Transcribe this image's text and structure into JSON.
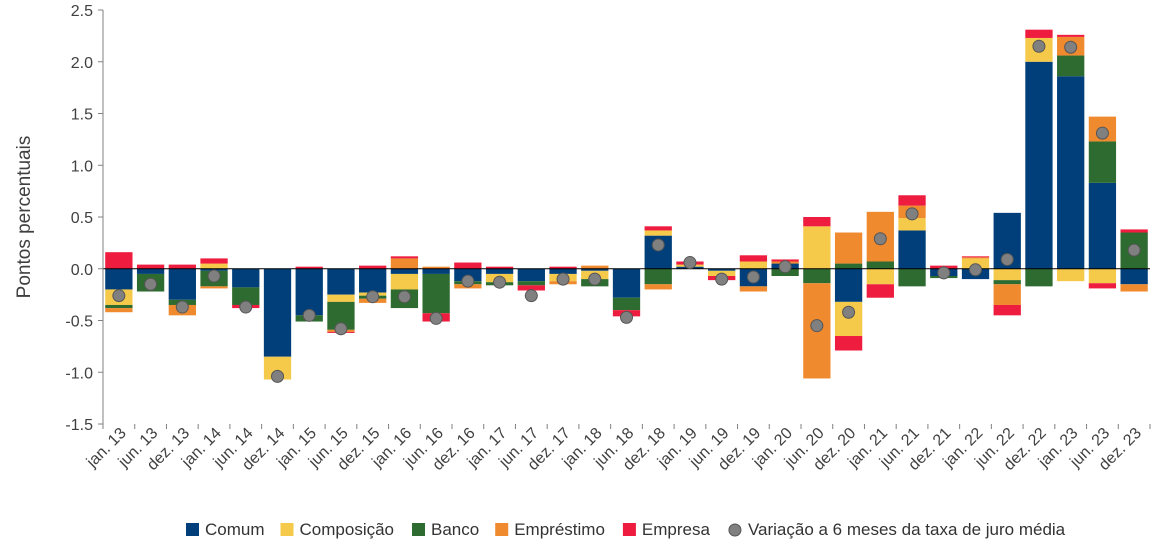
{
  "chart_data": {
    "type": "bar",
    "stacked": true,
    "title": "",
    "xlabel": "",
    "ylabel": "Pontos percentuais",
    "ylim": [
      -1.5,
      2.5
    ],
    "yticks": [
      -1.5,
      -1.0,
      -0.5,
      0.0,
      0.5,
      1.0,
      1.5,
      2.0,
      2.5
    ],
    "ytick_labels": [
      "-1.5",
      "-1.0",
      "-0.5",
      "0.0",
      "0.5",
      "1.0",
      "1.5",
      "2.0",
      "2.5"
    ],
    "grid": false,
    "legend_position": "bottom",
    "categories": [
      "jan. 13",
      "jun. 13",
      "dez. 13",
      "jan. 14",
      "jun. 14",
      "dez. 14",
      "jan. 15",
      "jun. 15",
      "dez. 15",
      "jan. 16",
      "jun. 16",
      "dez. 16",
      "jan. 17",
      "jun. 17",
      "dez. 17",
      "jan. 18",
      "jun. 18",
      "dez. 18",
      "jan. 19",
      "jun. 19",
      "dez. 19",
      "jan. 20",
      "jun. 20",
      "dez. 20",
      "jan. 21",
      "jun. 21",
      "dez. 21",
      "jan. 22",
      "jun. 22",
      "dez. 22",
      "jan. 23",
      "jun. 23",
      "dez. 23"
    ],
    "series": [
      {
        "name": "Comum",
        "color": "#003f7a",
        "values": [
          -0.2,
          -0.05,
          -0.3,
          -0.02,
          -0.18,
          -0.85,
          -0.45,
          -0.25,
          -0.23,
          -0.05,
          -0.05,
          -0.12,
          -0.05,
          -0.12,
          -0.05,
          -0.02,
          -0.28,
          0.32,
          0.02,
          -0.02,
          -0.17,
          0.05,
          0.0,
          -0.32,
          0.0,
          0.37,
          -0.07,
          -0.1,
          0.54,
          2.0,
          1.86,
          0.83,
          -0.15
        ]
      },
      {
        "name": "Composição",
        "color": "#f5c94a",
        "values": [
          -0.15,
          0.0,
          0.0,
          0.05,
          0.0,
          -0.22,
          0.0,
          -0.07,
          -0.03,
          -0.15,
          0.0,
          0.0,
          -0.08,
          0.0,
          -0.07,
          -0.08,
          0.0,
          0.05,
          0.02,
          -0.05,
          0.07,
          0.0,
          0.41,
          -0.33,
          -0.15,
          0.12,
          0.0,
          0.1,
          -0.11,
          0.23,
          -0.12,
          -0.14,
          0.0
        ]
      },
      {
        "name": "Banco",
        "color": "#2e6b30",
        "values": [
          -0.03,
          -0.17,
          -0.05,
          -0.15,
          -0.17,
          0.0,
          -0.06,
          -0.27,
          -0.03,
          -0.18,
          -0.38,
          -0.03,
          -0.03,
          -0.04,
          0.0,
          -0.07,
          -0.12,
          -0.15,
          0.0,
          0.0,
          0.0,
          -0.07,
          -0.14,
          0.05,
          0.07,
          -0.17,
          -0.02,
          0.0,
          -0.04,
          -0.17,
          0.2,
          0.4,
          0.35
        ]
      },
      {
        "name": "Empréstimo",
        "color": "#f08a2e",
        "values": [
          -0.04,
          0.0,
          -0.1,
          -0.02,
          0.0,
          0.0,
          0.0,
          -0.02,
          -0.04,
          0.1,
          0.02,
          -0.04,
          0.0,
          0.0,
          -0.03,
          0.03,
          0.0,
          -0.05,
          0.0,
          0.0,
          -0.05,
          0.02,
          -0.92,
          0.3,
          0.48,
          0.12,
          0.0,
          0.01,
          -0.2,
          0.0,
          0.18,
          0.24,
          -0.07
        ]
      },
      {
        "name": "Empresa",
        "color": "#ee1c3e",
        "values": [
          0.16,
          0.04,
          0.04,
          0.05,
          -0.03,
          0.0,
          0.02,
          -0.01,
          0.03,
          0.02,
          -0.08,
          0.06,
          0.02,
          -0.05,
          0.02,
          0.0,
          -0.06,
          0.04,
          0.03,
          -0.04,
          0.06,
          0.02,
          0.09,
          -0.14,
          -0.13,
          0.1,
          0.03,
          0.01,
          -0.1,
          0.08,
          0.02,
          -0.05,
          0.03
        ]
      }
    ],
    "dots": {
      "name": "Variação a 6 meses da taxa de juro média",
      "color": "#808080",
      "values": [
        -0.26,
        -0.15,
        -0.37,
        -0.07,
        -0.37,
        -1.04,
        -0.45,
        -0.58,
        -0.27,
        -0.27,
        -0.48,
        -0.12,
        -0.13,
        -0.26,
        -0.1,
        -0.1,
        -0.47,
        0.23,
        0.06,
        -0.1,
        -0.08,
        0.02,
        -0.55,
        -0.42,
        0.29,
        0.53,
        -0.04,
        -0.01,
        0.09,
        2.15,
        2.14,
        1.31,
        0.18
      ]
    }
  }
}
